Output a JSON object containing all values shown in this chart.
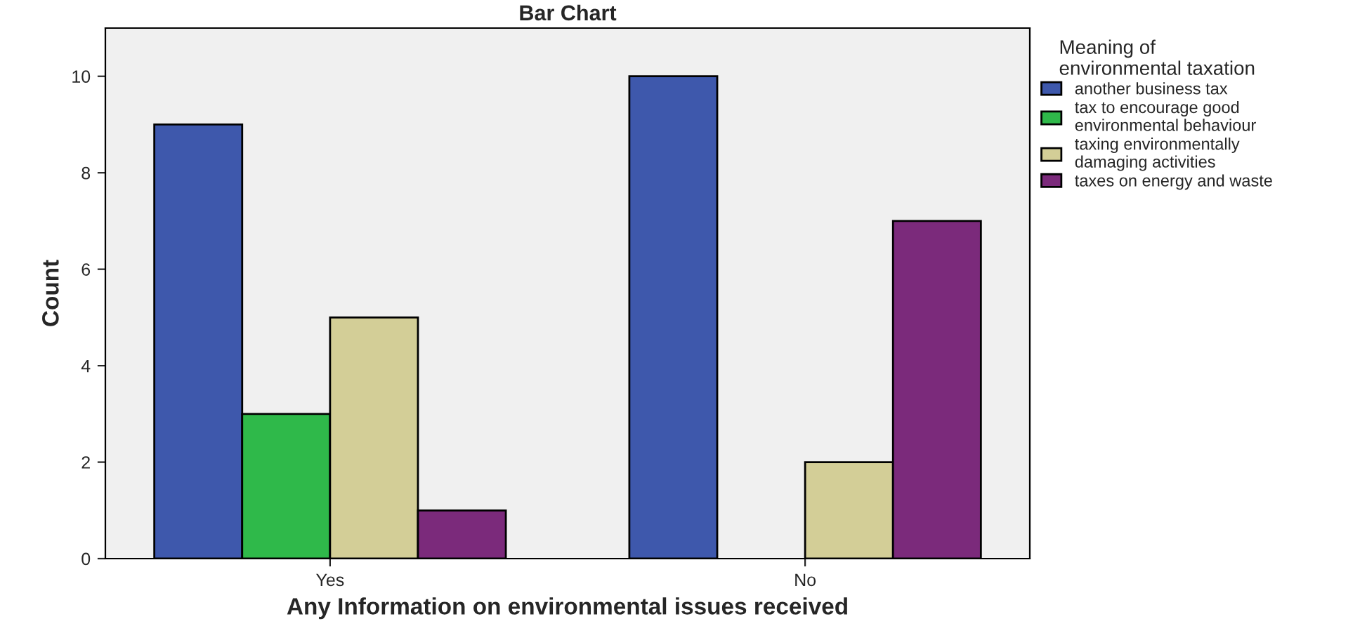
{
  "chart_data": {
    "type": "bar",
    "title": "Bar Chart",
    "xlabel": "Any Information on environmental issues received",
    "ylabel": "Count",
    "legend_title": "Meaning of\nenvironmental taxation",
    "categories": [
      "Yes",
      "No"
    ],
    "series": [
      {
        "name": "another business tax",
        "color": "#3e58ac",
        "values": [
          9,
          10
        ]
      },
      {
        "name": "tax to encourage good\nenvironmental behaviour",
        "color": "#2fb94a",
        "values": [
          3,
          null
        ]
      },
      {
        "name": "taxing environmentally\ndamaging activities",
        "color": "#d3ce97",
        "values": [
          5,
          2
        ]
      },
      {
        "name": "taxes on energy and waste",
        "color": "#7b2a7b",
        "values": [
          1,
          7
        ]
      }
    ],
    "ylim": [
      0,
      11
    ],
    "yticks": [
      0,
      2,
      4,
      6,
      8,
      10
    ],
    "grid": false,
    "legend": "right"
  }
}
